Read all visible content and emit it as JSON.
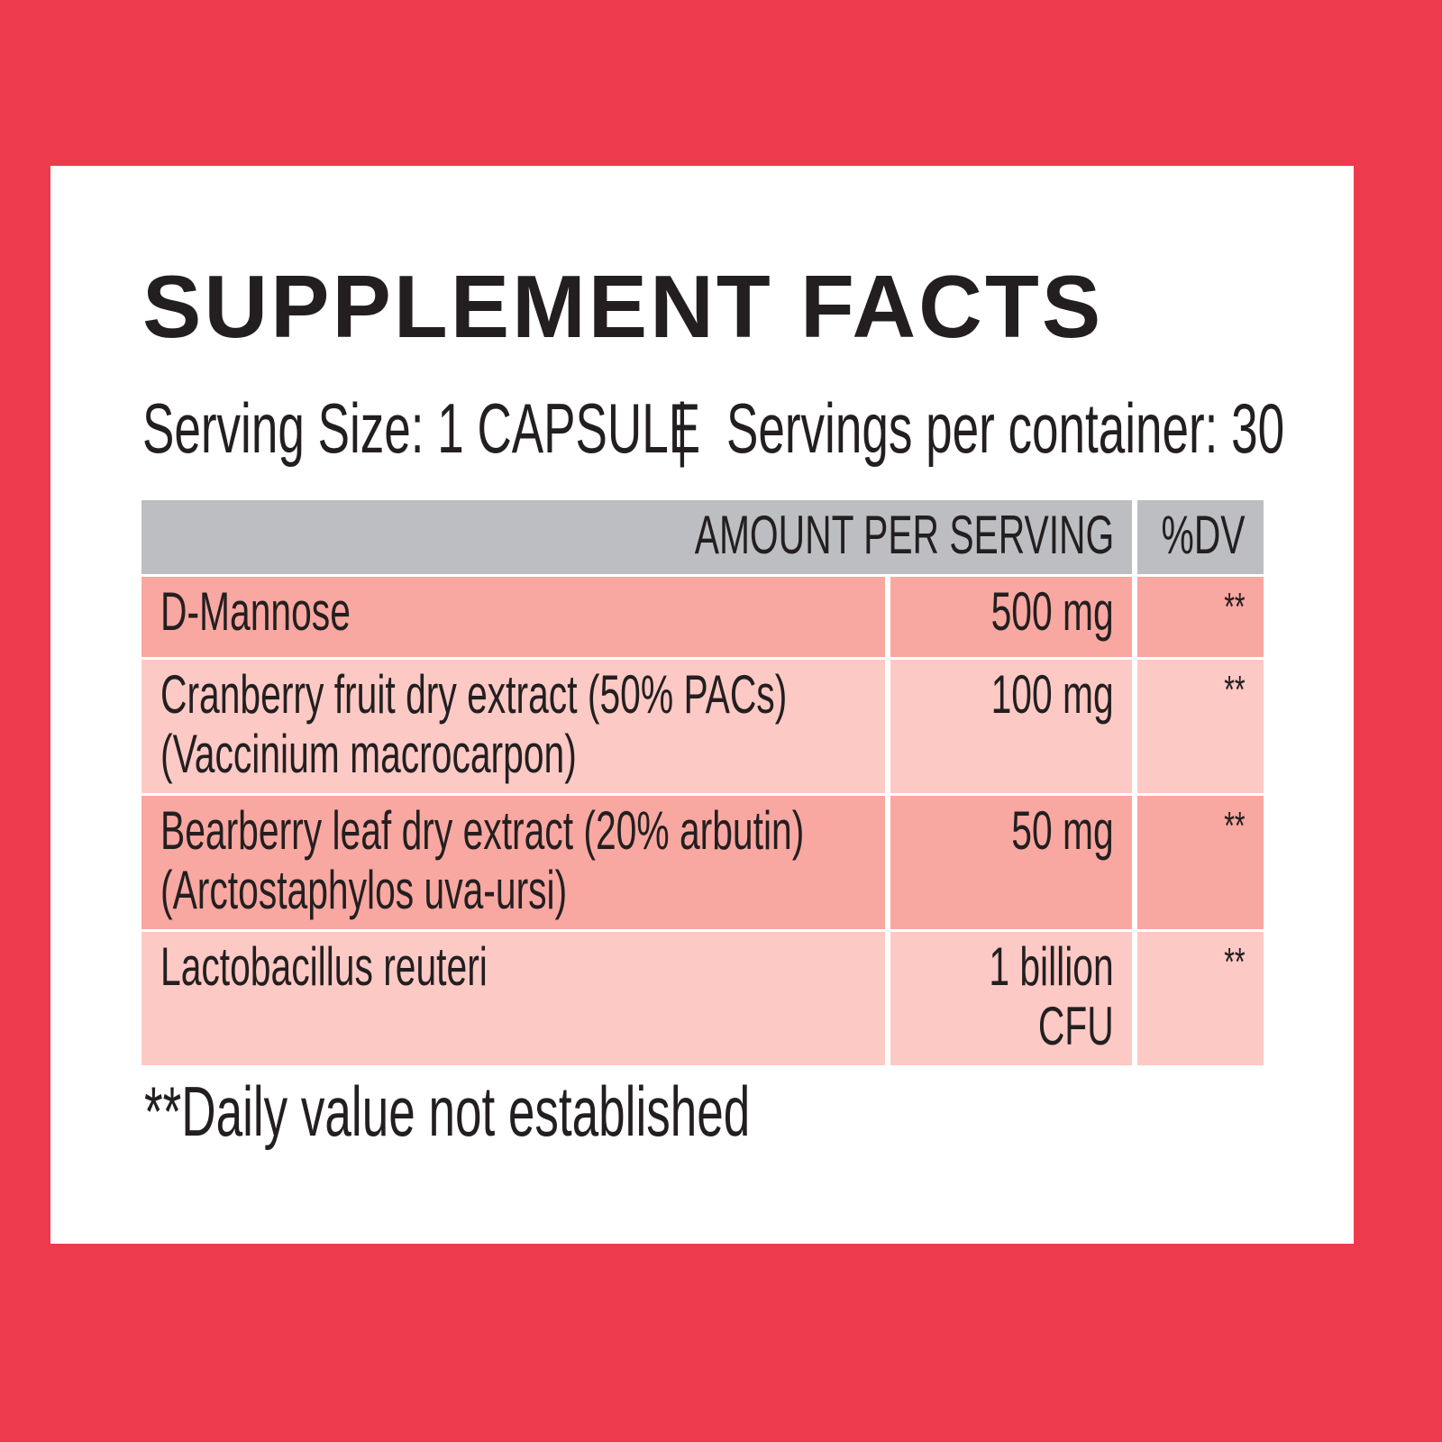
{
  "title": "SUPPLEMENT FACTS",
  "serving": {
    "size": "Serving Size: 1 CAPSULE",
    "separator": "|",
    "per_container": "Servings per container: 30"
  },
  "table": {
    "header": [
      "AMOUNT PER SERVING",
      "%DV"
    ],
    "rows": [
      [
        "D-Mannose",
        "500 mg",
        "**"
      ],
      [
        "Cranberry fruit dry extract (50% PACs) (Vaccinium macrocarpon)",
        "100 mg",
        "**"
      ],
      [
        "Bearberry leaf dry extract (20% arbutin) (Arctostaphylos uva-ursi)",
        "50 mg",
        "**"
      ],
      [
        "Lactobacillus reuteri",
        "1 billion CFU",
        "**"
      ]
    ]
  },
  "footnote": "**Daily value not established"
}
